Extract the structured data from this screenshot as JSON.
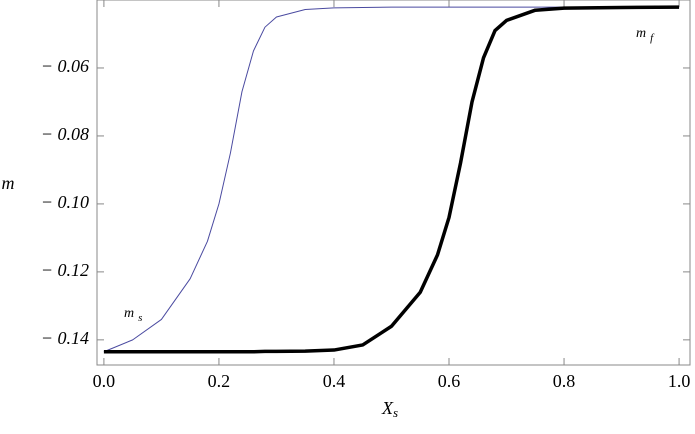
{
  "chart_data": {
    "type": "line",
    "x_label": {
      "text": "X",
      "sub": "s"
    },
    "y_label": "m",
    "x": [
      0,
      0.05,
      0.1,
      0.15,
      0.18,
      0.2,
      0.22,
      0.24,
      0.26,
      0.28,
      0.3,
      0.35,
      0.4,
      0.45,
      0.5,
      0.55,
      0.58,
      0.6,
      0.62,
      0.64,
      0.66,
      0.68,
      0.7,
      0.75,
      0.8,
      0.9,
      1.0
    ],
    "series": [
      {
        "name": {
          "text": "m",
          "sub": "s"
        },
        "color": "#4a4aa0",
        "width": 1,
        "values": [
          -0.1435,
          -0.14,
          -0.134,
          -0.122,
          -0.111,
          -0.1,
          -0.085,
          -0.067,
          -0.055,
          -0.048,
          -0.045,
          -0.0428,
          -0.0423,
          -0.0422,
          -0.0421,
          -0.0421,
          -0.0421,
          -0.0421,
          -0.0421,
          -0.0421,
          -0.0421,
          -0.0421,
          -0.0421,
          -0.0421,
          -0.0421,
          -0.0421,
          -0.0421
        ]
      },
      {
        "name": {
          "text": "m",
          "sub": "f"
        },
        "color": "#000000",
        "width": 3.5,
        "values": [
          -0.1435,
          -0.1435,
          -0.1435,
          -0.1435,
          -0.1435,
          -0.1435,
          -0.1435,
          -0.1435,
          -0.1435,
          -0.1434,
          -0.1434,
          -0.1433,
          -0.143,
          -0.1415,
          -0.136,
          -0.126,
          -0.115,
          -0.104,
          -0.088,
          -0.07,
          -0.057,
          -0.049,
          -0.046,
          -0.043,
          -0.0424,
          -0.0422,
          -0.0421
        ]
      }
    ],
    "xlim": [
      -0.012,
      1.019
    ],
    "ylim": [
      -0.1474,
      -0.04
    ],
    "xticks": [
      {
        "value": 0,
        "label": "0.0"
      },
      0.2,
      0.4,
      0.6,
      0.8,
      {
        "value": 1,
        "label": "1.0"
      }
    ],
    "yticks": [
      {
        "value": -0.14,
        "label": "− 0.14"
      },
      {
        "value": -0.12,
        "label": "− 0.12"
      },
      {
        "value": -0.1,
        "label": "− 0.10"
      },
      {
        "value": -0.08,
        "label": "− 0.08"
      },
      {
        "value": -0.06,
        "label": "− 0.06"
      }
    ]
  }
}
